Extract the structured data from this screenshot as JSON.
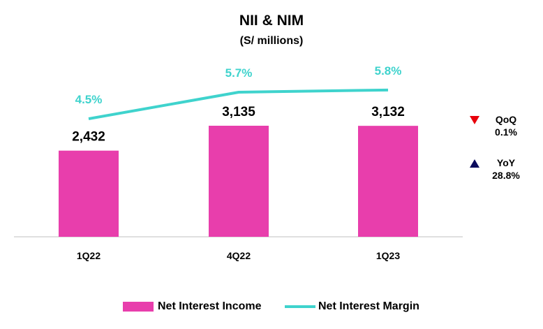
{
  "chart_data": {
    "type": "bar",
    "title": "NII & NIM",
    "subtitle": "(S/ millions)",
    "categories": [
      "1Q22",
      "4Q22",
      "1Q23"
    ],
    "series": [
      {
        "name": "Net Interest Income",
        "type": "bar",
        "values": [
          2432,
          3135,
          3132
        ],
        "labels": [
          "2,432",
          "3,135",
          "3,132"
        ],
        "color": "#e83eac"
      },
      {
        "name": "Net Interest Margin",
        "type": "line",
        "values": [
          4.5,
          5.7,
          5.8
        ],
        "labels": [
          "4.5%",
          "5.7%",
          "5.8%"
        ],
        "color": "#3fd3cd"
      }
    ],
    "legend": "bottom",
    "grid": false
  },
  "side_stats": {
    "qoq_label": "QoQ",
    "qoq_value": "0.1%",
    "qoq_direction": "down",
    "qoq_color": "#e8000b",
    "yoy_label": "YoY",
    "yoy_value": "28.8%",
    "yoy_direction": "up",
    "yoy_color": "#0b0b5c"
  }
}
